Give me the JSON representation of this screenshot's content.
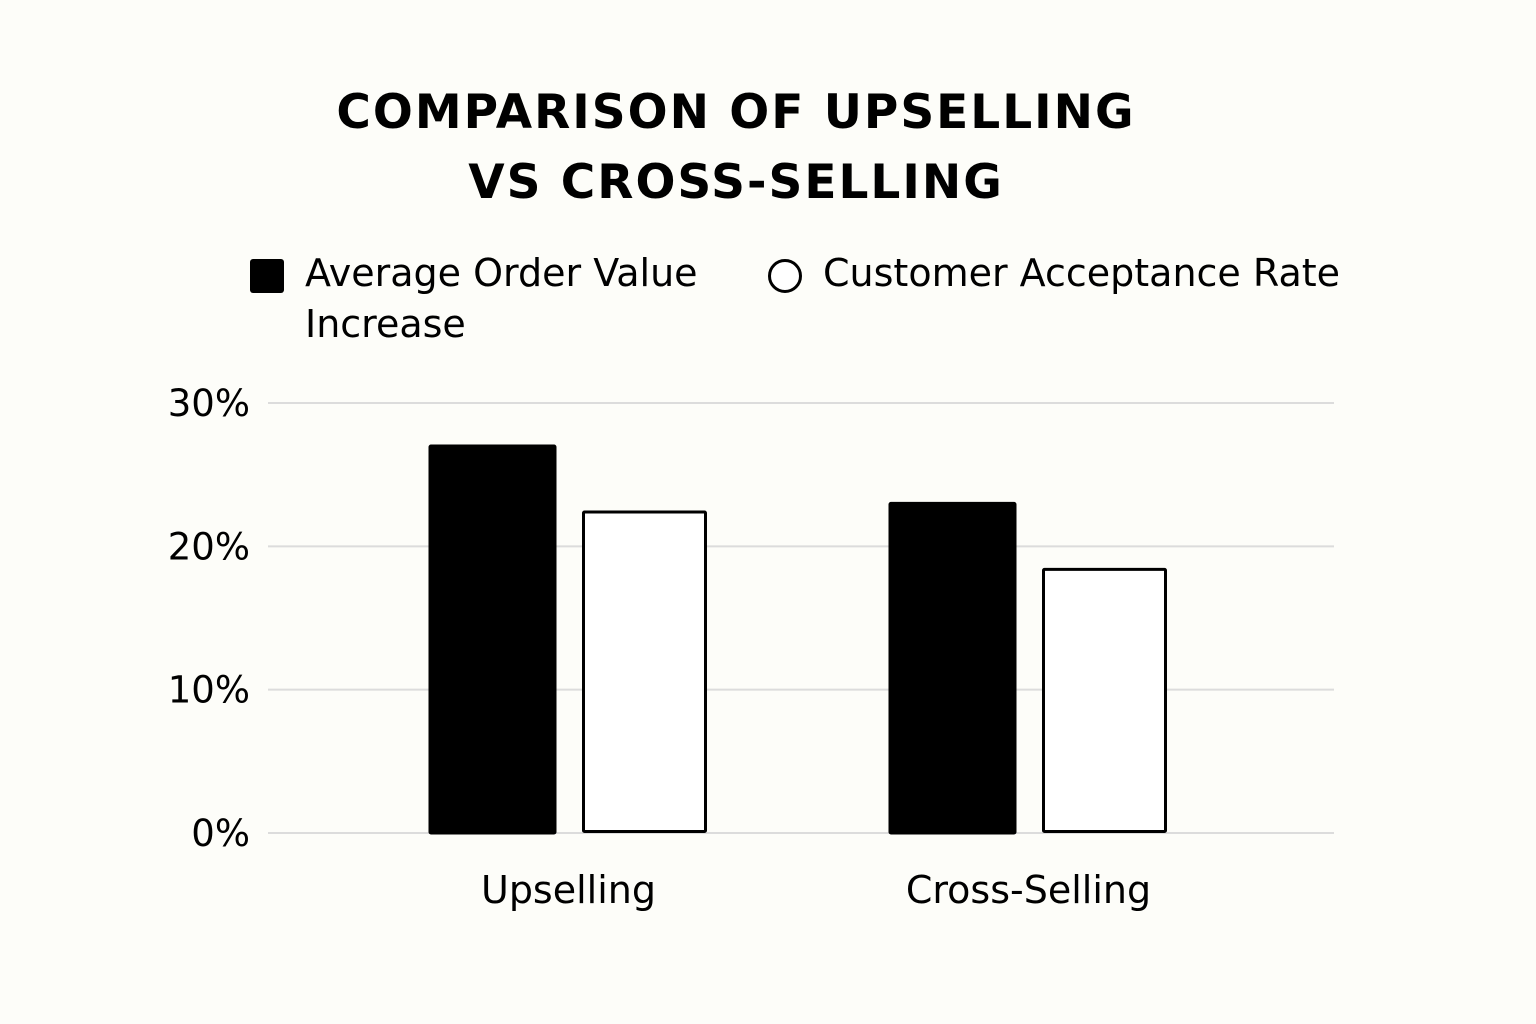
{
  "chart_data": {
    "type": "bar",
    "title_lines": [
      "COMPARISON OF UPSELLING",
      "VS CROSS-SELLING"
    ],
    "categories": [
      "Upselling",
      "Cross-Selling"
    ],
    "series": [
      {
        "name": "Average Order Value Increase",
        "legend_lines": [
          "Average Order Value",
          "Increase"
        ],
        "values": [
          27,
          23
        ],
        "fill": "#000000",
        "stroke": "#000000",
        "legend_marker": "square"
      },
      {
        "name": "Customer Acceptance Rate",
        "legend_lines": [
          "Customer Acceptance Rate"
        ],
        "values": [
          22.5,
          18.5
        ],
        "fill": "#ffffff",
        "stroke": "#000000",
        "legend_marker": "circle"
      }
    ],
    "yticks": [
      {
        "value": 0,
        "label": "0%"
      },
      {
        "value": 10,
        "label": "10%"
      },
      {
        "value": 20,
        "label": "20%"
      },
      {
        "value": 30,
        "label": "30%"
      }
    ],
    "ylim": [
      0,
      30
    ],
    "xlabel": "",
    "ylabel": "",
    "grid": true,
    "gridline_color": "#dcdcdc",
    "legend_position": "top"
  }
}
